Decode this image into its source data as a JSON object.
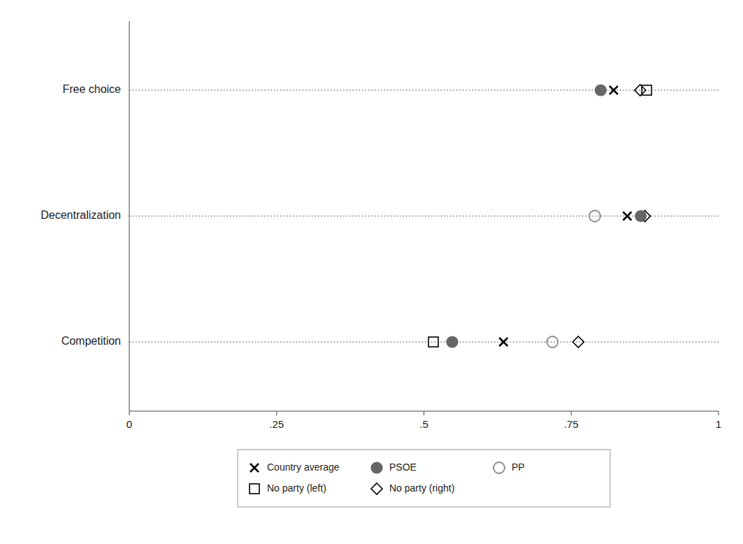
{
  "chart_data": {
    "type": "dot",
    "orientation": "horizontal",
    "categories": [
      "Competition",
      "Decentralization",
      "Free choice"
    ],
    "series": [
      {
        "name": "Country average",
        "color": "black",
        "marker": "x",
        "values": [
          0.635,
          0.845,
          0.822
        ]
      },
      {
        "name": "PSOE",
        "color": "#666666",
        "marker": "circle",
        "values": [
          0.548,
          0.868,
          0.8
        ]
      },
      {
        "name": "PP",
        "color": "#888888",
        "marker": "circle-open",
        "values": [
          0.718,
          0.79,
          null
        ]
      },
      {
        "name": "No party (left)",
        "color": "black",
        "marker": "square-open",
        "values": [
          0.516,
          null,
          0.878
        ]
      },
      {
        "name": "No party (right)",
        "color": "black",
        "marker": "diamond-open",
        "values": [
          0.762,
          0.875,
          0.867
        ]
      }
    ],
    "xlim": [
      0,
      1.0
    ],
    "xticks": [
      0,
      {
        "value": 0.25,
        "label": ".25"
      },
      {
        "value": 0.5,
        "label": ".5"
      },
      {
        "value": 0.75,
        "label": ".75"
      },
      1
    ],
    "grid": true,
    "legend": "bottom"
  }
}
